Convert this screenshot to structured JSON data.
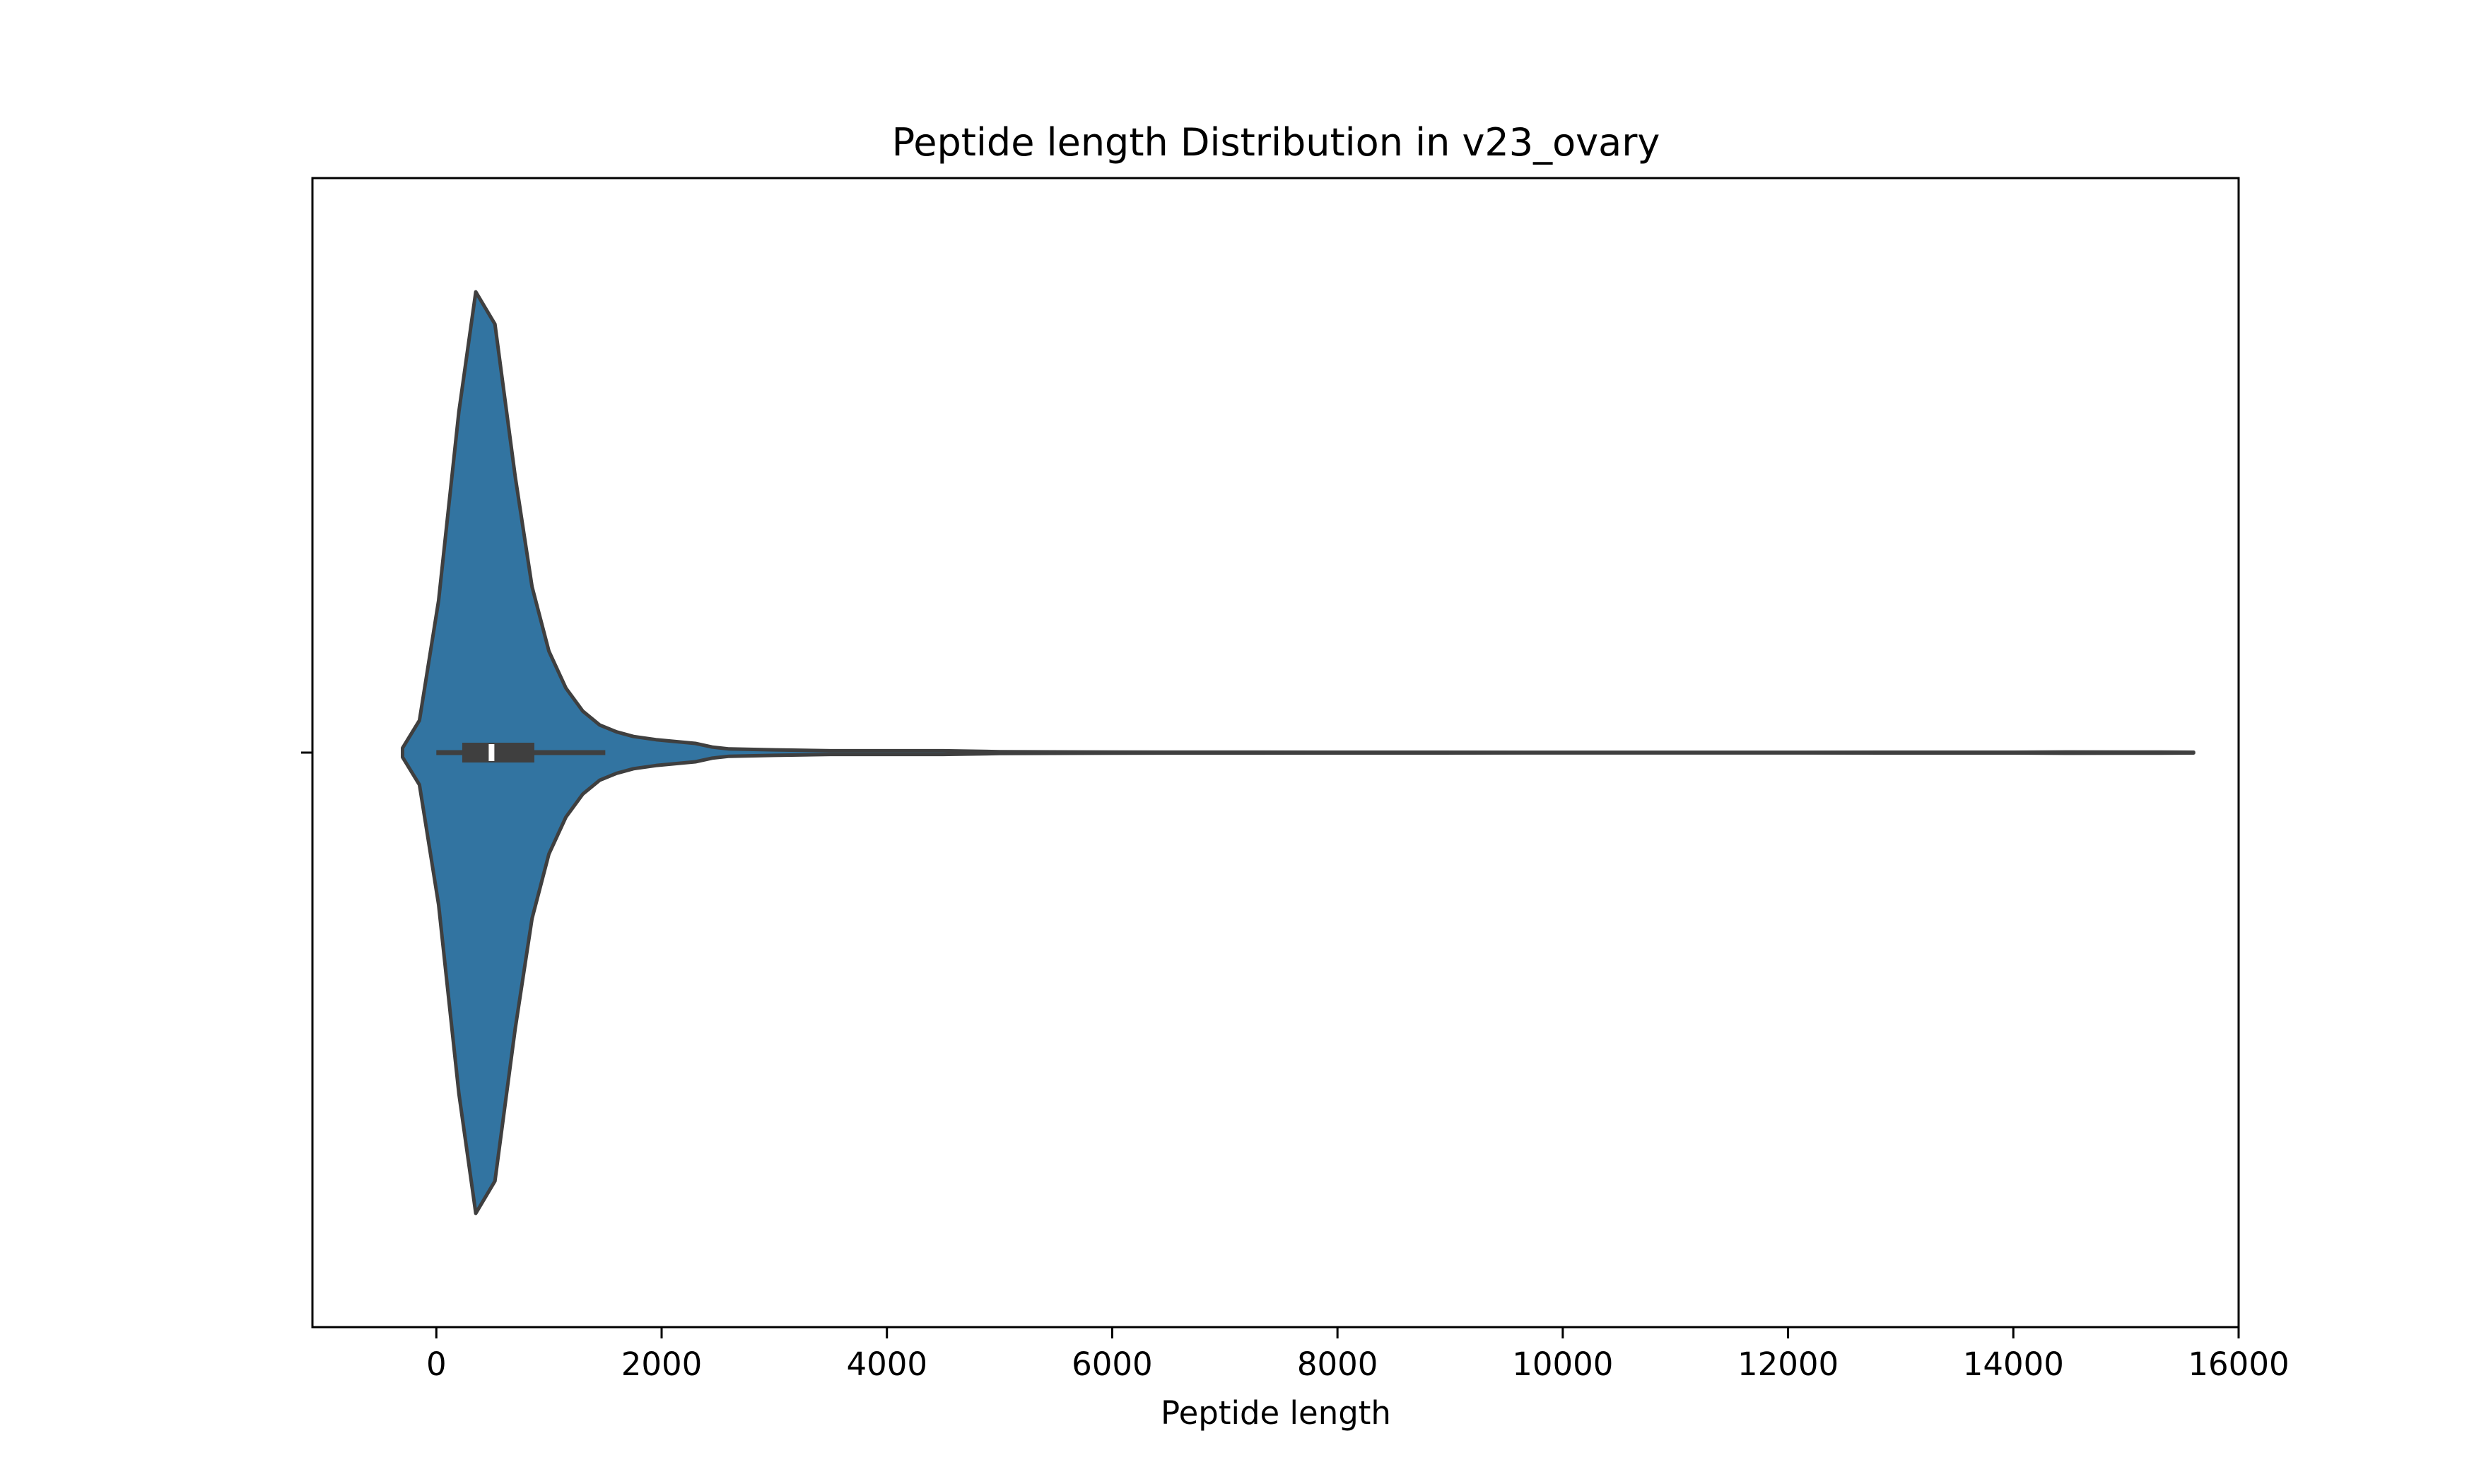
{
  "chart_data": {
    "type": "violin",
    "orientation": "horizontal",
    "title": "Peptide length Distribution in v23_ovary",
    "xlabel": "Peptide length",
    "ylabel": "",
    "xlim": [
      -1100,
      16000
    ],
    "xticks": [
      0,
      2000,
      4000,
      6000,
      8000,
      10000,
      12000,
      14000,
      16000
    ],
    "xtick_labels": [
      "0",
      "2000",
      "4000",
      "6000",
      "8000",
      "10000",
      "12000",
      "14000",
      "16000"
    ],
    "grid": false,
    "legend": "none",
    "series": [
      {
        "fill_color": "#3274a1",
        "edge_color": "#3f3f3f",
        "box_color": "#3f3f3f",
        "median_color": "#ffffff",
        "min": -300,
        "max": 15600,
        "quartile_1": 230,
        "median": 490,
        "quartile_3": 870,
        "whisker_low": 0,
        "whisker_high": 1500,
        "kde_length": [
          -300,
          -150,
          20,
          200,
          350,
          520,
          700,
          850,
          1000,
          1150,
          1300,
          1450,
          1600,
          1750,
          1950,
          2300,
          2450,
          2600,
          3000,
          3500,
          3900,
          4500,
          5000,
          6000,
          8000,
          10000,
          12000,
          14000,
          14500,
          15000,
          15300,
          15600
        ],
        "kde_density": [
          0.01,
          0.07,
          0.33,
          0.74,
          1.0,
          0.93,
          0.6,
          0.36,
          0.22,
          0.14,
          0.09,
          0.06,
          0.045,
          0.035,
          0.028,
          0.02,
          0.012,
          0.008,
          0.006,
          0.004,
          0.004,
          0.004,
          0.002,
          0.001,
          0.0007,
          0.0006,
          0.0006,
          0.0008,
          0.0014,
          0.001,
          0.0012,
          0.0007
        ]
      }
    ]
  }
}
